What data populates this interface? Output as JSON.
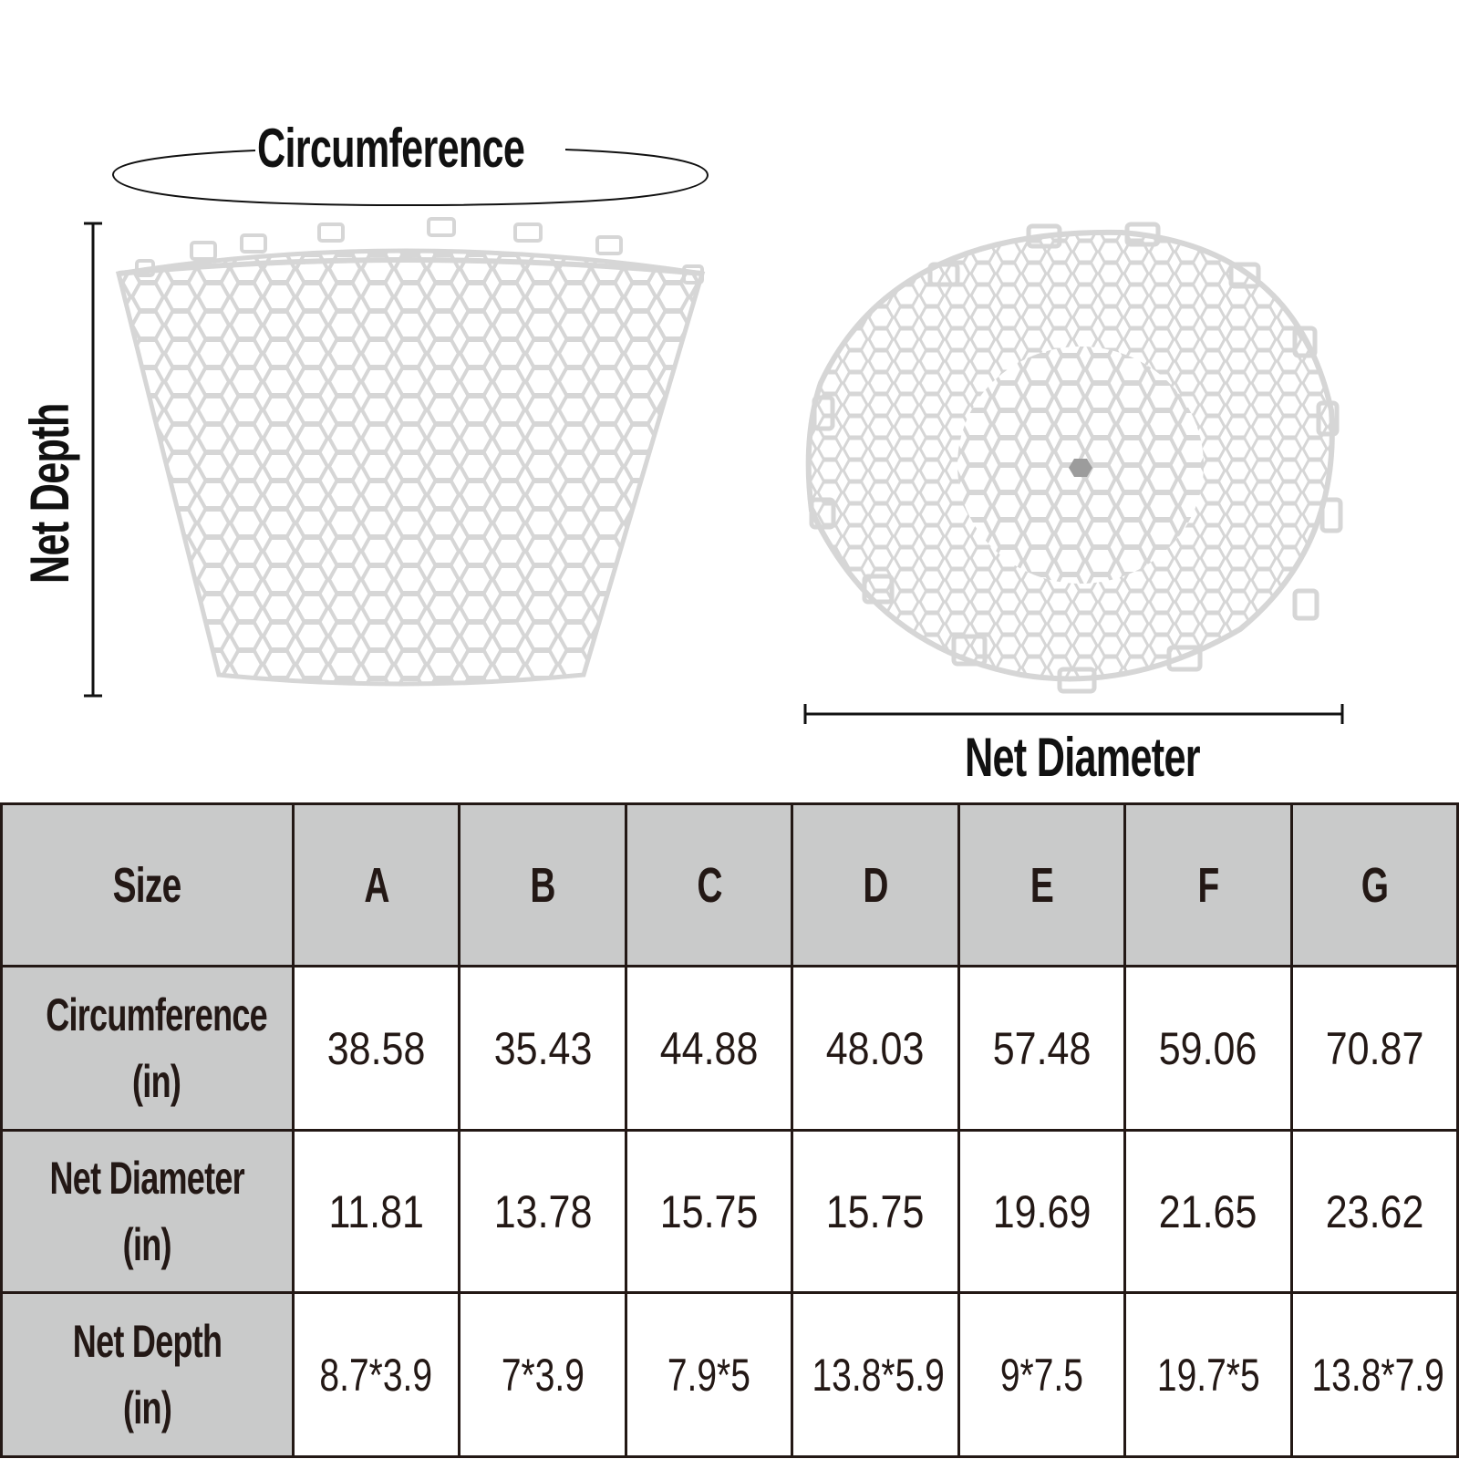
{
  "diagram": {
    "circumference_label": "Circumference",
    "depth_label": "Net Depth",
    "diameter_label": "Net Diameter"
  },
  "table": {
    "header": [
      "Size",
      "A",
      "B",
      "C",
      "D",
      "E",
      "F",
      "G"
    ],
    "rows": [
      {
        "label": "Circumference\n(in)",
        "values": [
          "38.58",
          "35.43",
          "44.88",
          "48.03",
          "57.48",
          "59.06",
          "70.87"
        ]
      },
      {
        "label": "Net Diameter\n(in)",
        "values": [
          "11.81",
          "13.78",
          "15.75",
          "15.75",
          "19.69",
          "21.65",
          "23.62"
        ]
      },
      {
        "label": "Net Depth\n(in)",
        "values": [
          "8.7*3.9",
          "7*3.9",
          "7.9*5",
          "13.8*5.9",
          "9*7.5",
          "19.7*5",
          "13.8*7.9"
        ]
      }
    ]
  },
  "colors": {
    "header_bg": "#c9caca",
    "border": "#231815",
    "net_stroke": "#d6d6d6"
  }
}
